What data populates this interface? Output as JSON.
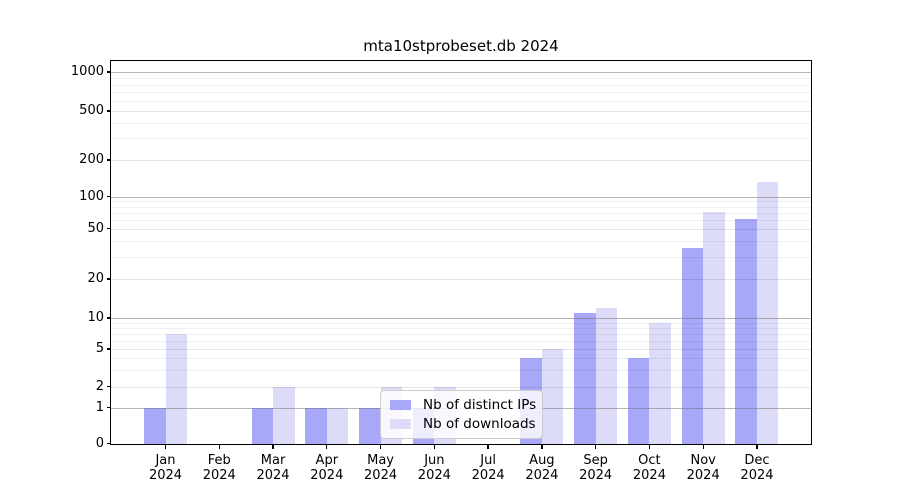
{
  "chart_data": {
    "type": "bar",
    "title": "mta10stprobeset.db 2024",
    "categories": [
      "Jan",
      "Feb",
      "Mar",
      "Apr",
      "May",
      "Jun",
      "Jul",
      "Aug",
      "Sep",
      "Oct",
      "Nov",
      "Dec"
    ],
    "category_year": "2024",
    "series": [
      {
        "name": "Nb of distinct IPs",
        "color": "#a8a8f8",
        "values": [
          1,
          0,
          1,
          1,
          1,
          1,
          0,
          4,
          11,
          4,
          35,
          61
        ]
      },
      {
        "name": "Nb of downloads",
        "color": "#dcdcf8",
        "values": [
          7,
          0,
          2,
          1,
          2,
          2,
          0,
          5,
          12,
          9,
          72,
          131
        ]
      }
    ],
    "yticks": [
      0,
      1,
      2,
      5,
      10,
      20,
      50,
      100,
      200,
      500,
      1000
    ],
    "yscale": "symlog",
    "ylim": [
      0,
      1300
    ],
    "xlabel": "",
    "ylabel": "",
    "grid": true,
    "legend_position": "inside-bottom-center",
    "background_color": "#ffffff",
    "text_color": "#000000"
  }
}
